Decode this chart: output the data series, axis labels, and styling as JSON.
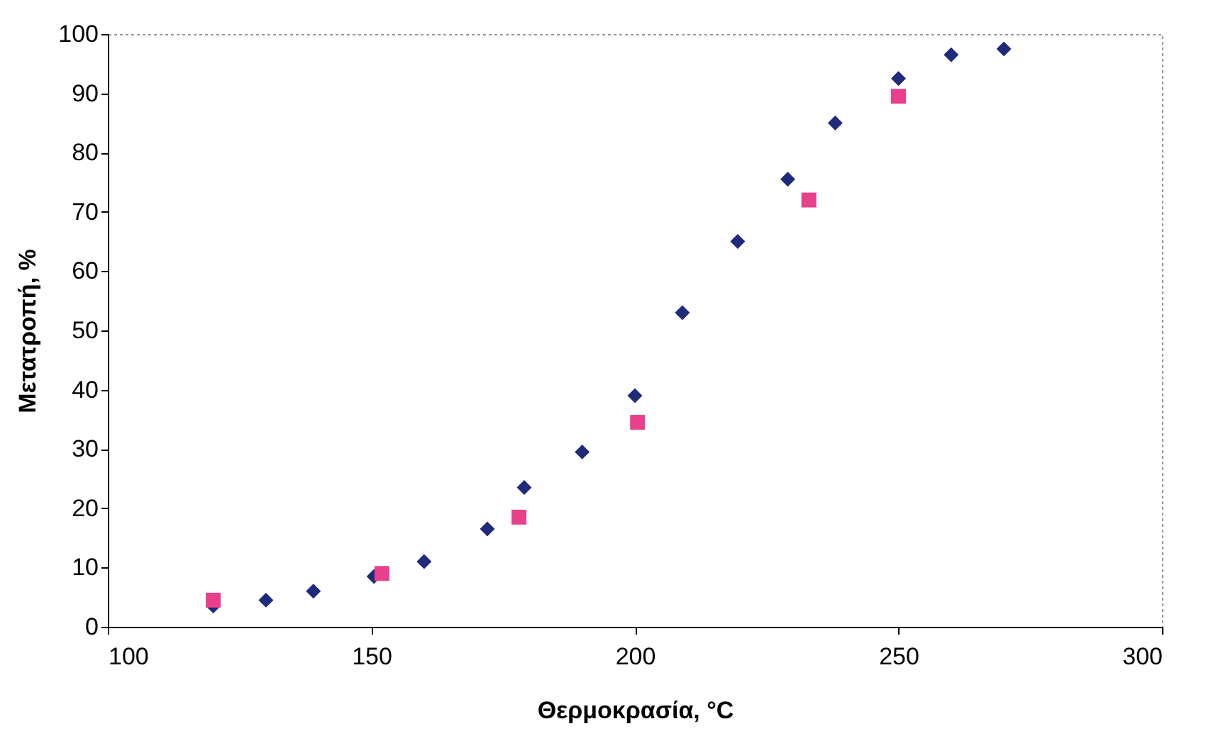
{
  "chart_data": {
    "type": "scatter",
    "xlabel": "Θερμοκρασία, °C",
    "ylabel": "Μετατροπή, %",
    "xlim": [
      100,
      300
    ],
    "xticks": [
      100,
      150,
      200,
      250,
      300
    ],
    "ylim": [
      0,
      100
    ],
    "yticks": [
      0,
      10,
      20,
      30,
      40,
      50,
      60,
      70,
      80,
      90,
      100
    ],
    "grid": false,
    "series": [
      {
        "color": "#1f2a7a",
        "marker": "diamond",
        "x": [
          120,
          130,
          139,
          150.5,
          160,
          172,
          179,
          190,
          200,
          209,
          219.5,
          229,
          238,
          250,
          260,
          270
        ],
        "values": [
          3.5,
          4.5,
          6,
          8.5,
          11,
          16.5,
          23.5,
          29.5,
          39,
          53,
          65,
          75.5,
          85,
          92.5,
          96.5,
          97.5
        ]
      },
      {
        "color": "#e8408a",
        "marker": "square",
        "x": [
          120,
          152,
          178,
          200.5,
          233,
          250
        ],
        "values": [
          4.5,
          9,
          18.5,
          34.5,
          72,
          89.5
        ]
      }
    ]
  }
}
